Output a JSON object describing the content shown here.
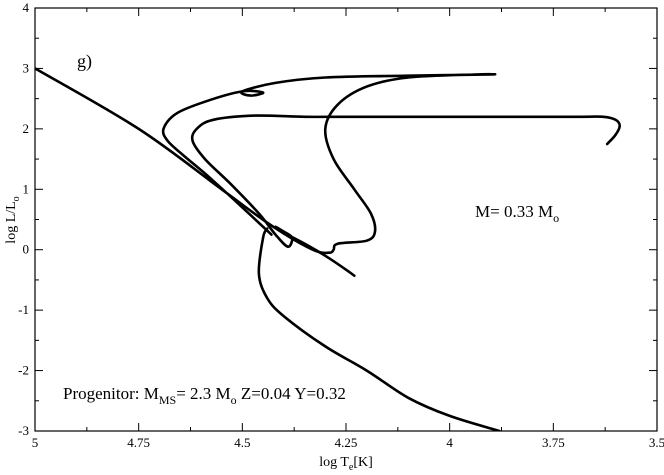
{
  "chart_data": {
    "type": "line",
    "title": "",
    "xlabel": {
      "main": "log T",
      "sub": "e",
      "tail": "[K]"
    },
    "ylabel": {
      "main": "log L/L",
      "sub": "o"
    },
    "xlim": [
      5,
      3.5
    ],
    "ylim": [
      -3,
      4
    ],
    "x_ticks": [
      5,
      4.75,
      4.5,
      4.25,
      4,
      3.75,
      3.5
    ],
    "x_tick_labels": [
      "5",
      "4.75",
      "4.5",
      "4.25",
      "4",
      "3.75",
      "3.5"
    ],
    "y_ticks": [
      -3,
      -2,
      -1,
      0,
      1,
      2,
      3,
      4
    ],
    "y_tick_labels": [
      "-3",
      "-2",
      "-1",
      "0",
      "1",
      "2",
      "3",
      "4"
    ],
    "grid": false,
    "annotations": {
      "panel": "g)",
      "mass": {
        "main": "M= 0.33 M",
        "sub": "o"
      },
      "progenitor": {
        "p1": "Progenitor: M",
        "p1sub": "MS",
        "p2": "= 2.3 M",
        "p2sub": "o",
        "p3": " Z=0.04 Y=0.32"
      }
    },
    "series": [
      {
        "values": [
          [
            4.23,
            -0.43
          ],
          [
            4.25,
            -0.33
          ],
          [
            4.3,
            -0.1
          ],
          [
            4.35,
            0.1
          ],
          [
            4.4,
            0.28
          ],
          [
            4.42,
            0.38
          ],
          [
            4.4,
            0.3
          ],
          [
            4.38,
            0.2
          ],
          [
            4.39,
            0.05
          ],
          [
            4.42,
            0.25
          ],
          [
            4.46,
            0.6
          ],
          [
            4.53,
            1.1
          ],
          [
            4.59,
            1.5
          ],
          [
            4.62,
            1.8
          ],
          [
            4.61,
            2.0
          ],
          [
            4.57,
            2.15
          ],
          [
            4.47,
            2.22
          ],
          [
            4.35,
            2.2
          ],
          [
            4.25,
            2.2
          ],
          [
            4.1,
            2.2
          ],
          [
            3.9,
            2.2
          ],
          [
            3.7,
            2.2
          ],
          [
            3.63,
            2.2
          ],
          [
            3.6,
            2.15
          ],
          [
            3.59,
            2.05
          ],
          [
            3.6,
            1.9
          ],
          [
            3.62,
            1.75
          ]
        ]
      },
      {
        "values": [
          [
            4.43,
            0.25
          ],
          [
            4.5,
            0.7
          ],
          [
            4.58,
            1.2
          ],
          [
            4.64,
            1.55
          ],
          [
            4.68,
            1.8
          ],
          [
            4.69,
            2.0
          ],
          [
            4.66,
            2.25
          ],
          [
            4.59,
            2.45
          ],
          [
            4.5,
            2.62
          ],
          [
            4.45,
            2.6
          ],
          [
            4.48,
            2.55
          ],
          [
            4.5,
            2.62
          ],
          [
            4.42,
            2.76
          ],
          [
            4.3,
            2.85
          ],
          [
            4.1,
            2.88
          ],
          [
            3.9,
            2.9
          ],
          [
            3.94,
            2.9
          ],
          [
            4.1,
            2.85
          ],
          [
            4.2,
            2.7
          ],
          [
            4.27,
            2.4
          ],
          [
            4.3,
            2.0
          ],
          [
            4.28,
            1.5
          ],
          [
            4.23,
            1.0
          ],
          [
            4.19,
            0.6
          ],
          [
            4.18,
            0.3
          ],
          [
            4.2,
            0.15
          ],
          [
            4.27,
            0.1
          ],
          [
            4.28,
            0.0
          ],
          [
            4.29,
            -0.05
          ],
          [
            4.33,
            0.0
          ],
          [
            4.43,
            0.4
          ],
          [
            4.55,
            1.0
          ],
          [
            4.75,
            2.0
          ],
          [
            5.0,
            3.0
          ]
        ]
      },
      {
        "values": [
          [
            4.44,
            0.35
          ],
          [
            4.45,
            0.2
          ],
          [
            4.46,
            -0.4
          ],
          [
            4.44,
            -0.8
          ],
          [
            4.4,
            -1.1
          ],
          [
            4.3,
            -1.6
          ],
          [
            4.2,
            -2.0
          ],
          [
            4.1,
            -2.45
          ],
          [
            4.0,
            -2.75
          ],
          [
            3.88,
            -3.0
          ]
        ]
      }
    ]
  }
}
